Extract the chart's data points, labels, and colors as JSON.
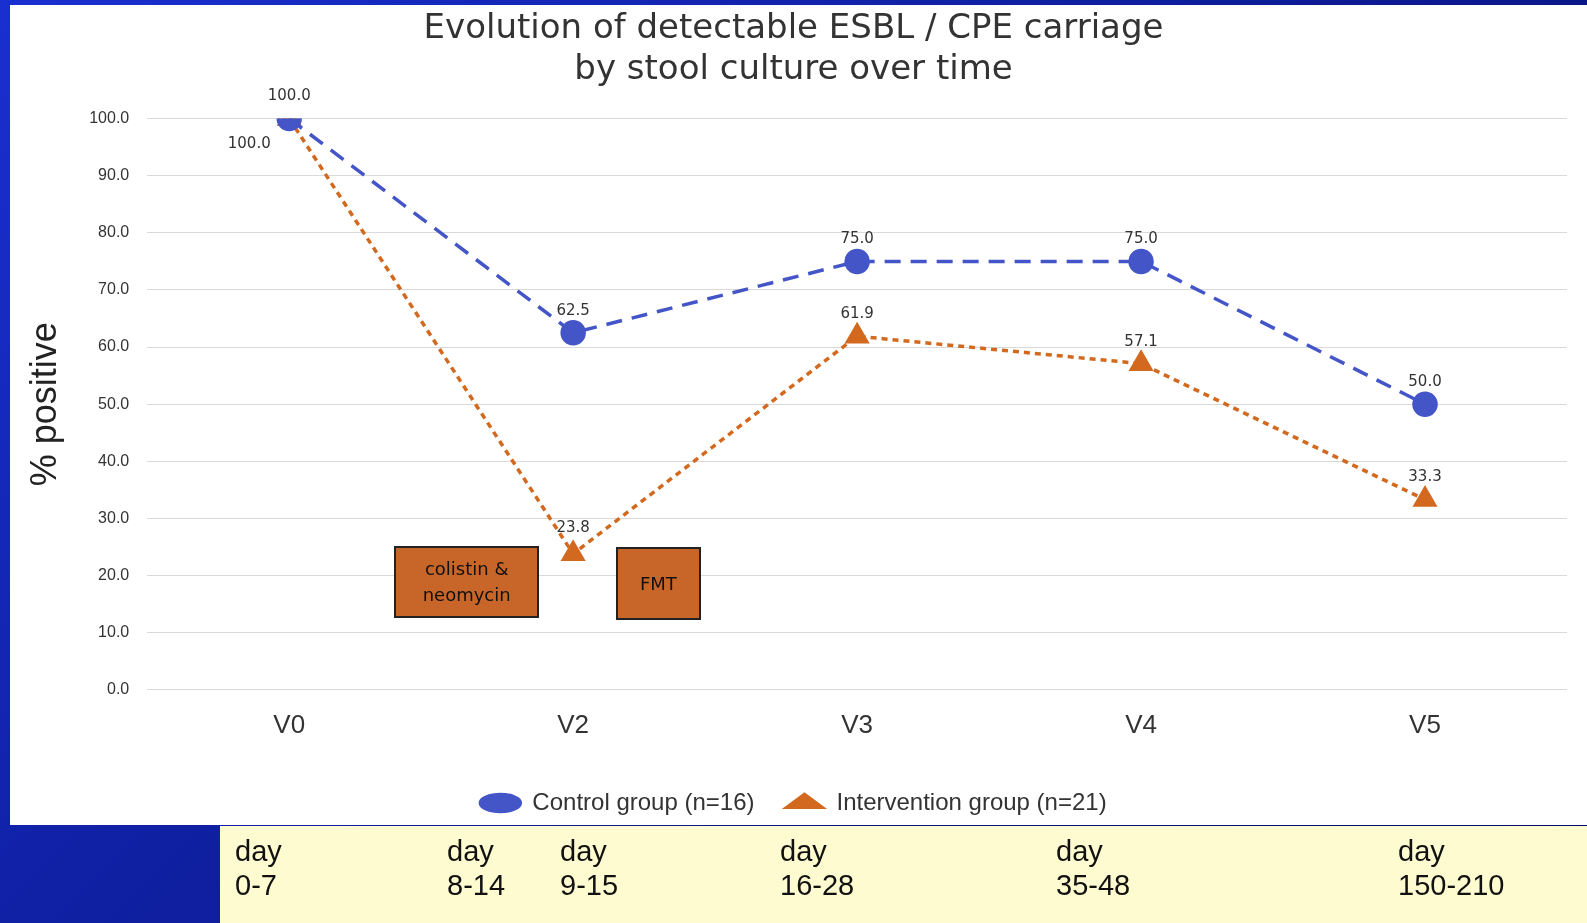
{
  "chart_data": {
    "type": "line",
    "title": [
      "Evolution of detectable ESBL / CPE carriage",
      "by stool culture over time"
    ],
    "ylabel": "% positive",
    "categories": [
      "V0",
      "V2",
      "V3",
      "V4",
      "V5"
    ],
    "series": [
      {
        "name": "Control group (n=16)",
        "color": "#4455c8",
        "values": [
          100,
          62.5,
          75,
          75,
          50
        ],
        "value_labels": [
          "100.0",
          "62.5",
          "75.0",
          "75.0",
          "50.0"
        ],
        "marker": "circle",
        "line_style": "dashed"
      },
      {
        "name": "Intervention group (n=21)",
        "color": "#d2691e",
        "values": [
          100,
          23.8,
          61.9,
          57.1,
          33.3
        ],
        "value_labels": [
          "100.0",
          "23.8",
          "61.9",
          "57.1",
          "33.3"
        ],
        "marker": "triangle",
        "line_style": "dotted"
      }
    ],
    "ylim": [
      0,
      100
    ],
    "yticks": [
      {
        "value": 0,
        "label": "0.0"
      },
      {
        "value": 10,
        "label": "10.0"
      },
      {
        "value": 20,
        "label": "20.0"
      },
      {
        "value": 30,
        "label": "30.0"
      },
      {
        "value": 40,
        "label": "40.0"
      },
      {
        "value": 50,
        "label": "50.0"
      },
      {
        "value": 60,
        "label": "60.0"
      },
      {
        "value": 70,
        "label": "70.0"
      },
      {
        "value": 80,
        "label": "80.0"
      },
      {
        "value": 90,
        "label": "90.0"
      },
      {
        "value": 100,
        "label": "100.0"
      }
    ],
    "grid": "y",
    "legend": "bottom",
    "annotations": [
      "colistin & neomycin",
      "FMT",
      "day 0-7",
      "day 8-14",
      "day 9-15",
      "day 16-28",
      "day 35-48",
      "day 150-210"
    ]
  }
}
